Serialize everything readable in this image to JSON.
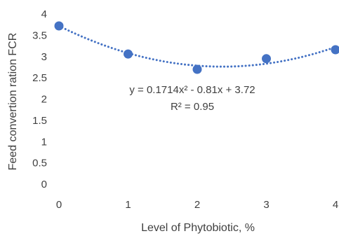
{
  "chart_data": {
    "type": "scatter",
    "title": "",
    "xlabel": "Level of Phytobiotic, %",
    "ylabel": "Feed convertion ration FCR",
    "xlim": [
      0,
      4
    ],
    "ylim": [
      0,
      4
    ],
    "x_ticks": [
      "0",
      "1",
      "2",
      "3",
      "4"
    ],
    "y_ticks": [
      "0",
      "0.5",
      "1",
      "1.5",
      "2",
      "2.5",
      "3",
      "3.5",
      "4"
    ],
    "grid": false,
    "series": [
      {
        "x": [
          0,
          1,
          2,
          3,
          4
        ],
        "y": [
          3.72,
          3.06,
          2.7,
          2.95,
          3.16
        ],
        "color": "#4472C4"
      }
    ],
    "trendline": {
      "type": "polynomial",
      "a": 0.1714,
      "b": -0.81,
      "c": 3.72,
      "equation": "y = 0.1714x² - 0.81x + 3.72",
      "r_squared": "R² = 0.95",
      "color": "#4472C4",
      "style": "dotted"
    }
  }
}
